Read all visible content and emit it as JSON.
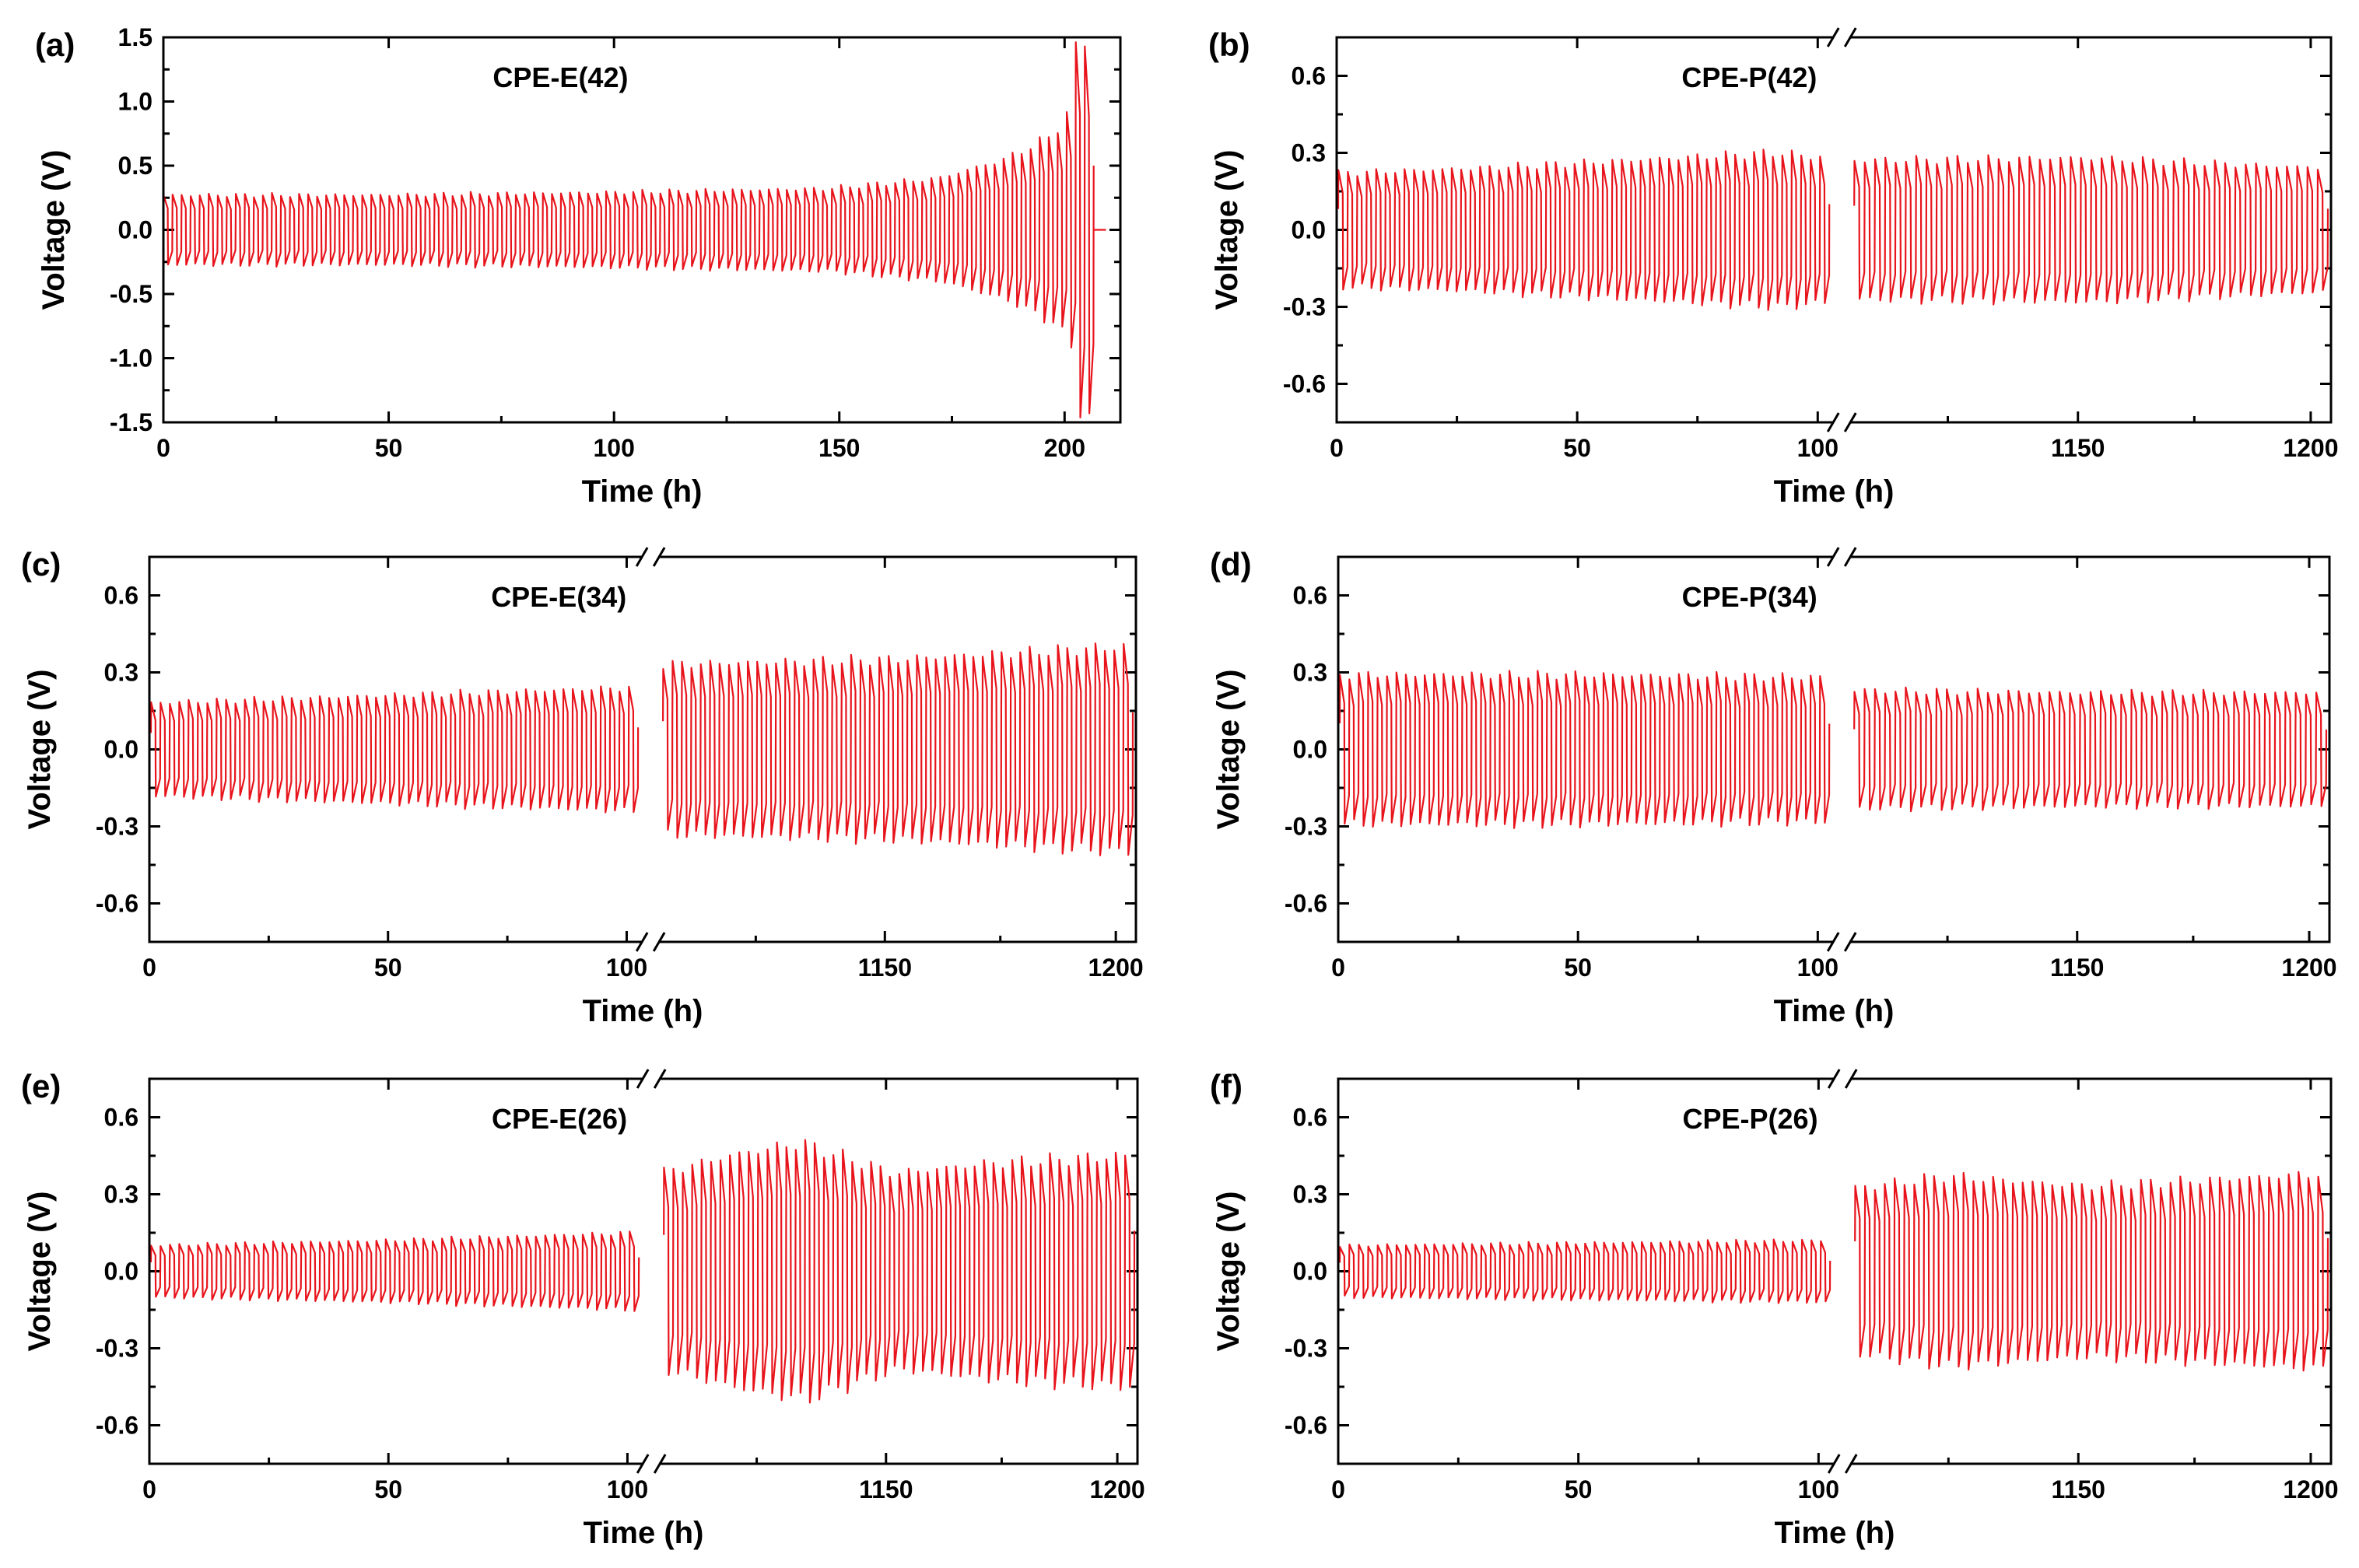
{
  "chart_data": [
    {
      "panel": "(a)",
      "type": "line",
      "title": "CPE-E(42)",
      "xlabel": "Time (h)",
      "ylabel": "Voltage (V)",
      "xlim": [
        0,
        215
      ],
      "ylim": [
        -1.5,
        1.5
      ],
      "xticks": [
        "0",
        "50",
        "100",
        "150",
        "200"
      ],
      "yticks": [
        "-1.5",
        "-1.0",
        "-0.5",
        "0.0",
        "0.5",
        "1.0",
        "1.5"
      ],
      "x_break": false,
      "series": [
        {
          "name": "CPE-E(42)",
          "cycles": 103,
          "amplitude_points": [
            [
              0,
              0.27
            ],
            [
              50,
              0.27
            ],
            [
              100,
              0.29
            ],
            [
              150,
              0.32
            ],
            [
              175,
              0.4
            ],
            [
              190,
              0.55
            ],
            [
              200,
              0.72
            ],
            [
              204,
              0.9
            ],
            [
              206,
              1.4
            ],
            [
              208,
              1.5
            ]
          ],
          "short_circuit_after": 209
        }
      ]
    },
    {
      "panel": "(b)",
      "type": "line",
      "title": "CPE-P(42)",
      "xlabel": "Time (h)",
      "ylabel": "Voltage (V)",
      "xlim": [
        0,
        1210
      ],
      "ylim": [
        -0.75,
        0.75
      ],
      "xticks": [
        "0",
        "50",
        "100",
        "1150",
        "1200"
      ],
      "yticks": [
        "-0.6",
        "-0.3",
        "0.0",
        "0.3",
        "0.6"
      ],
      "x_break": true,
      "series": [
        {
          "name": "CPE-P(42)",
          "segments": [
            {
              "cycles": 52,
              "amplitude_points": [
                [
                  0,
                  0.22
                ],
                [
                  0.3,
                  0.24
                ],
                [
                  0.6,
                  0.27
                ],
                [
                  0.9,
                  0.3
                ],
                [
                  1,
                  0.28
                ]
              ]
            },
            {
              "cycles": 46,
              "amplitude_points": [
                [
                  0,
                  0.27
                ],
                [
                  0.5,
                  0.28
                ],
                [
                  1,
                  0.24
                ]
              ]
            }
          ]
        }
      ]
    },
    {
      "panel": "(c)",
      "type": "line",
      "title": "CPE-E(34)",
      "xlabel": "Time (h)",
      "ylabel": "Voltage (V)",
      "xlim": [
        0,
        1205
      ],
      "ylim": [
        -0.75,
        0.75
      ],
      "xticks": [
        "0",
        "50",
        "100",
        "1150",
        "1200"
      ],
      "yticks": [
        "-0.6",
        "-0.3",
        "0.0",
        "0.3",
        "0.6"
      ],
      "x_break": true,
      "series": [
        {
          "name": "CPE-E(34)",
          "segments": [
            {
              "cycles": 52,
              "amplitude_points": [
                [
                  0,
                  0.18
                ],
                [
                  0.5,
                  0.21
                ],
                [
                  1,
                  0.24
                ]
              ]
            },
            {
              "cycles": 50,
              "amplitude_points": [
                [
                  0,
                  0.33
                ],
                [
                  0.5,
                  0.35
                ],
                [
                  1,
                  0.4
                ]
              ]
            }
          ]
        }
      ]
    },
    {
      "panel": "(d)",
      "type": "line",
      "title": "CPE-P(34)",
      "xlabel": "Time (h)",
      "ylabel": "Voltage (V)",
      "xlim": [
        0,
        1205
      ],
      "ylim": [
        -0.75,
        0.75
      ],
      "xticks": [
        "0",
        "50",
        "100",
        "1150",
        "1200"
      ],
      "yticks": [
        "-0.6",
        "-0.3",
        "0.0",
        "0.3",
        "0.6"
      ],
      "x_break": true,
      "series": [
        {
          "name": "CPE-P(34)",
          "segments": [
            {
              "cycles": 52,
              "amplitude_points": [
                [
                  0,
                  0.29
                ],
                [
                  0.5,
                  0.29
                ],
                [
                  1,
                  0.28
                ]
              ]
            },
            {
              "cycles": 46,
              "amplitude_points": [
                [
                  0,
                  0.23
                ],
                [
                  0.5,
                  0.22
                ],
                [
                  1,
                  0.22
                ]
              ]
            }
          ]
        }
      ]
    },
    {
      "panel": "(e)",
      "type": "line",
      "title": "CPE-E(26)",
      "xlabel": "Time (h)",
      "ylabel": "Voltage (V)",
      "xlim": [
        0,
        1210
      ],
      "ylim": [
        -0.75,
        0.75
      ],
      "xticks": [
        "0",
        "50",
        "100",
        "1150",
        "1200"
      ],
      "yticks": [
        "-0.6",
        "-0.3",
        "0.0",
        "0.3",
        "0.6"
      ],
      "x_break": true,
      "series": [
        {
          "name": "CPE-E(26)",
          "segments": [
            {
              "cycles": 52,
              "amplitude_points": [
                [
                  0,
                  0.1
                ],
                [
                  0.5,
                  0.12
                ],
                [
                  1,
                  0.15
                ]
              ]
            },
            {
              "cycles": 50,
              "amplitude_points": [
                [
                  0,
                  0.38
                ],
                [
                  0.15,
                  0.45
                ],
                [
                  0.3,
                  0.5
                ],
                [
                  0.5,
                  0.38
                ],
                [
                  0.7,
                  0.42
                ],
                [
                  1,
                  0.45
                ]
              ]
            }
          ]
        }
      ]
    },
    {
      "panel": "(f)",
      "type": "line",
      "title": "CPE-P(26)",
      "xlabel": "Time (h)",
      "ylabel": "Voltage (V)",
      "xlim": [
        0,
        1210
      ],
      "ylim": [
        -0.75,
        0.75
      ],
      "xticks": [
        "0",
        "50",
        "100",
        "1150",
        "1200"
      ],
      "yticks": [
        "-0.6",
        "-0.3",
        "0.0",
        "0.3",
        "0.6"
      ],
      "x_break": true,
      "series": [
        {
          "name": "CPE-P(26)",
          "segments": [
            {
              "cycles": 52,
              "amplitude_points": [
                [
                  0,
                  0.1
                ],
                [
                  0.5,
                  0.11
                ],
                [
                  1,
                  0.12
                ]
              ]
            },
            {
              "cycles": 48,
              "amplitude_points": [
                [
                  0,
                  0.32
                ],
                [
                  0.2,
                  0.37
                ],
                [
                  0.5,
                  0.33
                ],
                [
                  1,
                  0.38
                ]
              ]
            }
          ]
        }
      ]
    }
  ]
}
